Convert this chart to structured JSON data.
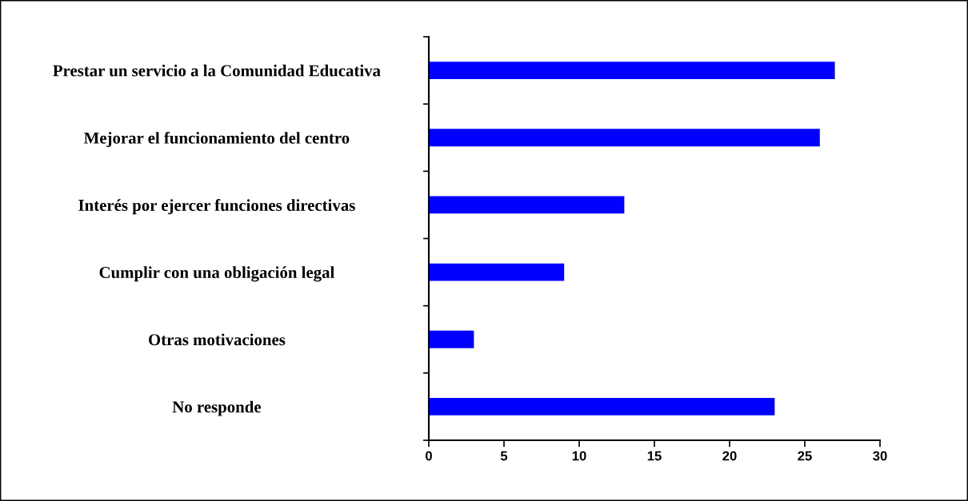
{
  "chart_data": {
    "type": "bar",
    "orientation": "horizontal",
    "categories": [
      "Prestar un servicio a la Comunidad Educativa",
      "Mejorar el funcionamiento del centro",
      "Interés por ejercer funciones directivas",
      "Cumplir con una obligación legal",
      "Otras motivaciones",
      "No responde"
    ],
    "values": [
      27,
      26,
      13,
      9,
      3,
      23
    ],
    "color": "#0000ff",
    "xlim": [
      0,
      30
    ],
    "xticks": [
      0,
      5,
      10,
      15,
      20,
      25,
      30
    ],
    "grid": false,
    "legend": false
  }
}
